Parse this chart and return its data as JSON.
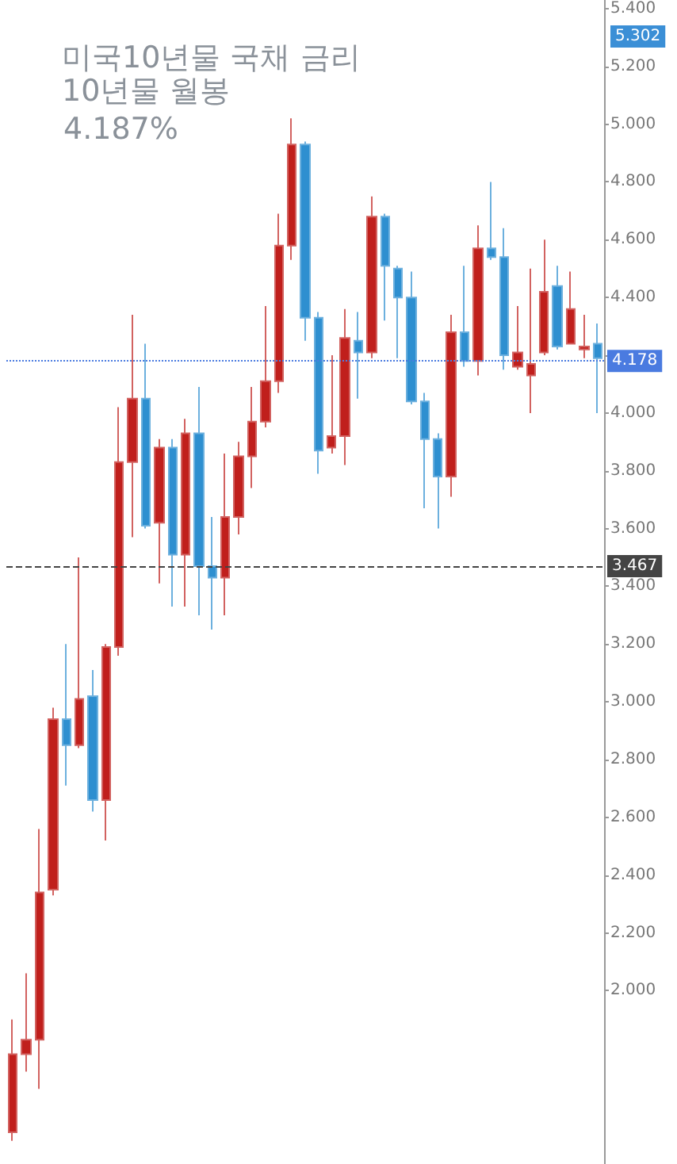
{
  "chart_data": {
    "type": "candlestick",
    "title": "미국10년물 국채 금리",
    "subtitle": "10년물 월봉",
    "annotations": [
      "4.187%",
      "5.302"
    ],
    "categories": [
      null,
      null,
      null,
      null,
      null,
      null,
      null,
      null,
      null,
      null,
      null,
      null,
      null,
      null,
      null,
      null,
      null,
      null,
      null,
      null,
      null,
      null,
      null,
      null,
      null,
      null,
      null,
      null,
      null,
      null,
      null,
      null,
      null,
      null,
      null,
      null,
      null,
      null,
      null,
      null,
      null,
      null,
      null,
      null,
      null
    ],
    "ohlc": [
      [
        1.51,
        1.9,
        1.48,
        1.78
      ],
      [
        1.78,
        2.06,
        1.72,
        1.83
      ],
      [
        1.83,
        2.56,
        1.66,
        2.34
      ],
      [
        2.35,
        2.98,
        2.33,
        2.94
      ],
      [
        2.94,
        3.2,
        2.71,
        2.85
      ],
      [
        2.85,
        3.5,
        2.84,
        3.01
      ],
      [
        3.02,
        3.11,
        2.62,
        2.66
      ],
      [
        2.66,
        3.2,
        2.52,
        3.19
      ],
      [
        3.19,
        4.02,
        3.16,
        3.83
      ],
      [
        3.83,
        4.34,
        3.57,
        4.05
      ],
      [
        4.05,
        4.24,
        3.6,
        3.61
      ],
      [
        3.62,
        3.91,
        3.41,
        3.88
      ],
      [
        3.88,
        3.91,
        3.33,
        3.51
      ],
      [
        3.51,
        3.98,
        3.33,
        3.93
      ],
      [
        3.93,
        4.09,
        3.3,
        3.47
      ],
      [
        3.47,
        3.64,
        3.25,
        3.43
      ],
      [
        3.43,
        3.86,
        3.3,
        3.64
      ],
      [
        3.64,
        3.9,
        3.58,
        3.85
      ],
      [
        3.85,
        4.09,
        3.74,
        3.97
      ],
      [
        3.97,
        4.37,
        3.95,
        4.11
      ],
      [
        4.11,
        4.69,
        4.07,
        4.58
      ],
      [
        4.58,
        5.02,
        4.53,
        4.93
      ],
      [
        4.93,
        4.94,
        4.25,
        4.33
      ],
      [
        4.33,
        4.35,
        3.79,
        3.87
      ],
      [
        3.88,
        4.2,
        3.86,
        3.92
      ],
      [
        3.92,
        4.36,
        3.82,
        4.26
      ],
      [
        4.25,
        4.35,
        4.05,
        4.21
      ],
      [
        4.21,
        4.75,
        4.19,
        4.68
      ],
      [
        4.68,
        4.69,
        4.32,
        4.51
      ],
      [
        4.5,
        4.51,
        4.19,
        4.4
      ],
      [
        4.4,
        4.49,
        4.03,
        4.04
      ],
      [
        4.04,
        4.07,
        3.67,
        3.91
      ],
      [
        3.91,
        3.93,
        3.6,
        3.78
      ],
      [
        3.78,
        4.34,
        3.71,
        4.28
      ],
      [
        4.28,
        4.51,
        4.16,
        4.18
      ],
      [
        4.18,
        4.65,
        4.13,
        4.57
      ],
      [
        4.57,
        4.8,
        4.53,
        4.54
      ],
      [
        4.54,
        4.64,
        4.15,
        4.2
      ],
      [
        4.16,
        4.37,
        4.15,
        4.21
      ],
      [
        4.13,
        4.5,
        4.0,
        4.17
      ],
      [
        4.21,
        4.6,
        4.2,
        4.42
      ],
      [
        4.44,
        4.51,
        4.22,
        4.23
      ],
      [
        4.24,
        4.49,
        4.24,
        4.36
      ],
      [
        4.22,
        4.34,
        4.19,
        4.23
      ],
      [
        4.24,
        4.31,
        4.0,
        4.19
      ]
    ],
    "colors": [
      "#c01f1c",
      "#c01f1c",
      "#c01f1c",
      "#c01f1c",
      "#2e8fd0",
      "#c01f1c",
      "#2e8fd0",
      "#c01f1c",
      "#c01f1c",
      "#c01f1c",
      "#2e8fd0",
      "#c01f1c",
      "#2e8fd0",
      "#c01f1c",
      "#2e8fd0",
      "#2e8fd0",
      "#c01f1c",
      "#c01f1c",
      "#c01f1c",
      "#c01f1c",
      "#c01f1c",
      "#c01f1c",
      "#2e8fd0",
      "#2e8fd0",
      "#c01f1c",
      "#c01f1c",
      "#2e8fd0",
      "#c01f1c",
      "#2e8fd0",
      "#2e8fd0",
      "#2e8fd0",
      "#2e8fd0",
      "#2e8fd0",
      "#c01f1c",
      "#2e8fd0",
      "#c01f1c",
      "#2e8fd0",
      "#2e8fd0",
      "#c01f1c",
      "#c01f1c",
      "#c01f1c",
      "#2e8fd0",
      "#c01f1c",
      "#c01f1c",
      "#2e8fd0"
    ],
    "ylim": [
      1.4,
      5.43
    ],
    "yticks": [
      {
        "value": 2.0,
        "label": "2.000"
      },
      {
        "value": 2.2,
        "label": "2.200"
      },
      {
        "value": 2.4,
        "label": "2.400"
      },
      {
        "value": 2.6,
        "label": "2.600"
      },
      {
        "value": 2.8,
        "label": "2.800"
      },
      {
        "value": 3.0,
        "label": "3.000"
      },
      {
        "value": 3.2,
        "label": "3.200"
      },
      {
        "value": 3.4,
        "label": "3.400"
      },
      {
        "value": 3.6,
        "label": "3.600"
      },
      {
        "value": 3.8,
        "label": "3.800"
      },
      {
        "value": 4.0,
        "label": "4.000"
      },
      {
        "value": 4.2,
        "label": null
      },
      {
        "value": 4.4,
        "label": "4.400"
      },
      {
        "value": 4.6,
        "label": "4.600"
      },
      {
        "value": 4.8,
        "label": "4.800"
      },
      {
        "value": 5.0,
        "label": "5.000"
      },
      {
        "value": 5.2,
        "label": "5.200"
      },
      {
        "value": 5.4,
        "label": "5.400"
      }
    ],
    "ref_lines": [
      {
        "axis": "y",
        "value": 4.178,
        "label": "4.178",
        "color": "#4a7be0",
        "line_style": "dotted"
      },
      {
        "axis": "y",
        "value": 3.467,
        "label": "3.467",
        "color": "#444444",
        "line_style": "dashed"
      }
    ],
    "grid": false,
    "tick_labels": "y"
  }
}
